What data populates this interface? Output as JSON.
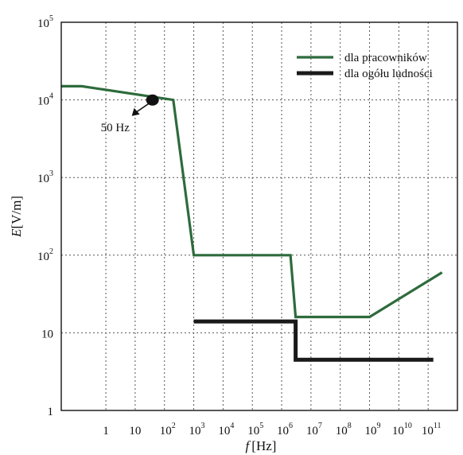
{
  "chart_data": {
    "type": "line",
    "xlabel": {
      "symbol": "f",
      "unit": "[Hz]"
    },
    "ylabel": {
      "symbol": "E",
      "unit": "[V/m]"
    },
    "x_scale": "log",
    "y_scale": "log",
    "xlim": [
      0.03,
      1000000000000
    ],
    "ylim": [
      1,
      100000
    ],
    "x_ticks": [
      {
        "value": 1,
        "base": "1",
        "exp": ""
      },
      {
        "value": 10,
        "base": "10",
        "exp": ""
      },
      {
        "value": 100,
        "base": "10",
        "exp": "2"
      },
      {
        "value": 1000,
        "base": "10",
        "exp": "3"
      },
      {
        "value": 10000,
        "base": "10",
        "exp": "4"
      },
      {
        "value": 100000,
        "base": "10",
        "exp": "5"
      },
      {
        "value": 1000000,
        "base": "10",
        "exp": "6"
      },
      {
        "value": 10000000,
        "base": "10",
        "exp": "7"
      },
      {
        "value": 100000000,
        "base": "10",
        "exp": "8"
      },
      {
        "value": 1000000000,
        "base": "10",
        "exp": "9"
      },
      {
        "value": 10000000000,
        "base": "10",
        "exp": "10"
      },
      {
        "value": 100000000000,
        "base": "10",
        "exp": "11"
      }
    ],
    "y_ticks": [
      {
        "value": 1,
        "base": "1",
        "exp": ""
      },
      {
        "value": 10,
        "base": "10",
        "exp": ""
      },
      {
        "value": 100,
        "base": "10",
        "exp": "2"
      },
      {
        "value": 1000,
        "base": "10",
        "exp": "3"
      },
      {
        "value": 10000,
        "base": "10",
        "exp": "4"
      },
      {
        "value": 100000,
        "base": "10",
        "exp": "5"
      }
    ],
    "grid": true,
    "legend_position": "top-right",
    "series": [
      {
        "name": "dla pracowników",
        "color": "#2e6b3c",
        "points": [
          [
            0.03,
            15000
          ],
          [
            0.15,
            15000
          ],
          [
            200,
            10000
          ],
          [
            1000,
            100
          ],
          [
            2000000,
            100
          ],
          [
            3000000,
            16
          ],
          [
            1000000000,
            16
          ],
          [
            300000000000,
            60
          ]
        ]
      },
      {
        "name": "dla ogółu ludności",
        "color": "#1a1a1a",
        "points": [
          [
            1000,
            14
          ],
          [
            3000000,
            14
          ],
          [
            3000000,
            4.5
          ],
          [
            150000000000,
            4.5
          ]
        ]
      }
    ],
    "annotations": [
      {
        "text": "50 Hz",
        "x": 50,
        "y": 9500
      }
    ]
  }
}
